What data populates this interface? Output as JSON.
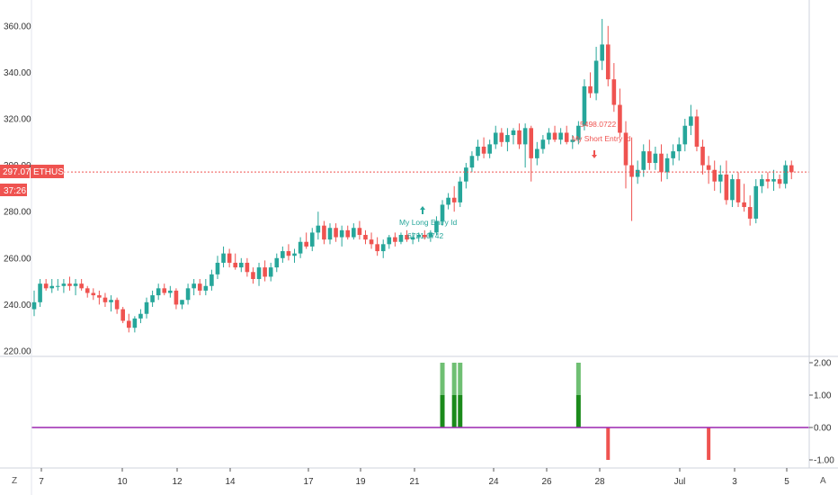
{
  "chart_data": [
    {
      "type": "candlestick",
      "symbol_tag": "ETHUSD",
      "price_tag": "297.07",
      "countdown_tag": "37:26",
      "last_price": 297.07,
      "ylim": [
        218,
        366
      ],
      "y_ticks": [
        "220.00",
        "240.00",
        "260.00",
        "280.00",
        "300.00",
        "320.00",
        "340.00",
        "360.00"
      ],
      "x_ticks": [
        "7",
        "10",
        "12",
        "14",
        "17",
        "19",
        "21",
        "24",
        "26",
        "28",
        "Jul",
        "3",
        "5"
      ],
      "candles": [
        [
          238,
          246,
          235,
          241
        ],
        [
          241,
          251,
          239,
          249
        ],
        [
          249,
          251,
          246,
          247
        ],
        [
          247,
          251,
          245,
          248
        ],
        [
          248,
          251,
          246,
          248
        ],
        [
          248,
          251,
          245,
          249
        ],
        [
          249,
          252,
          246,
          248
        ],
        [
          248,
          251,
          244,
          249
        ],
        [
          249,
          251,
          246,
          247
        ],
        [
          247,
          248,
          243,
          245
        ],
        [
          245,
          247,
          242,
          244
        ],
        [
          244,
          246,
          240,
          243
        ],
        [
          243,
          245,
          239,
          241
        ],
        [
          241,
          244,
          237,
          242
        ],
        [
          242,
          243,
          236,
          238
        ],
        [
          238,
          239,
          232,
          233
        ],
        [
          233,
          236,
          228,
          230
        ],
        [
          230,
          235,
          228,
          234
        ],
        [
          234,
          238,
          232,
          236
        ],
        [
          236,
          243,
          234,
          241
        ],
        [
          241,
          246,
          239,
          244
        ],
        [
          244,
          249,
          242,
          247
        ],
        [
          247,
          249,
          244,
          245
        ],
        [
          245,
          248,
          243,
          246
        ],
        [
          246,
          247,
          238,
          240
        ],
        [
          240,
          242,
          238,
          242
        ],
        [
          242,
          249,
          240,
          247
        ],
        [
          247,
          251,
          244,
          249
        ],
        [
          249,
          251,
          244,
          246
        ],
        [
          246,
          251,
          244,
          248
        ],
        [
          248,
          255,
          246,
          253
        ],
        [
          253,
          261,
          251,
          258
        ],
        [
          258,
          265,
          256,
          262
        ],
        [
          262,
          264,
          256,
          258
        ],
        [
          258,
          262,
          255,
          256
        ],
        [
          256,
          260,
          254,
          258
        ],
        [
          258,
          260,
          252,
          254
        ],
        [
          254,
          256,
          249,
          251
        ],
        [
          251,
          258,
          248,
          256
        ],
        [
          256,
          259,
          250,
          252
        ],
        [
          252,
          258,
          250,
          256
        ],
        [
          256,
          262,
          254,
          260
        ],
        [
          260,
          265,
          258,
          263
        ],
        [
          263,
          266,
          259,
          261
        ],
        [
          261,
          264,
          258,
          262
        ],
        [
          262,
          269,
          260,
          267
        ],
        [
          267,
          271,
          264,
          265
        ],
        [
          265,
          273,
          263,
          271
        ],
        [
          271,
          280,
          268,
          274
        ],
        [
          274,
          276,
          266,
          268
        ],
        [
          268,
          275,
          266,
          273
        ],
        [
          273,
          275,
          267,
          269
        ],
        [
          269,
          274,
          265,
          272
        ],
        [
          272,
          274,
          268,
          269
        ],
        [
          269,
          275,
          268,
          273
        ],
        [
          273,
          276,
          268,
          270
        ],
        [
          270,
          272,
          266,
          268
        ],
        [
          268,
          271,
          264,
          266
        ],
        [
          266,
          269,
          261,
          263
        ],
        [
          263,
          268,
          260,
          266
        ],
        [
          266,
          270,
          264,
          269
        ],
        [
          269,
          271,
          265,
          267
        ],
        [
          267,
          271,
          266,
          270
        ],
        [
          270,
          272,
          267,
          268
        ],
        [
          268,
          271,
          266,
          269
        ],
        [
          269,
          271,
          267,
          270
        ],
        [
          270,
          272,
          268,
          269
        ],
        [
          269,
          272,
          267,
          271
        ],
        [
          271,
          278,
          270,
          276
        ],
        [
          276,
          285,
          274,
          283
        ],
        [
          283,
          288,
          281,
          286
        ],
        [
          286,
          291,
          280,
          284
        ],
        [
          284,
          295,
          282,
          293
        ],
        [
          293,
          301,
          290,
          299
        ],
        [
          299,
          306,
          297,
          304
        ],
        [
          304,
          311,
          302,
          308
        ],
        [
          308,
          312,
          303,
          305
        ],
        [
          305,
          311,
          303,
          309
        ],
        [
          309,
          317,
          307,
          314
        ],
        [
          314,
          316,
          308,
          310
        ],
        [
          310,
          316,
          306,
          313
        ],
        [
          313,
          316,
          309,
          315
        ],
        [
          315,
          318,
          307,
          309
        ],
        [
          309,
          318,
          299,
          316
        ],
        [
          316,
          317,
          293,
          303
        ],
        [
          303,
          310,
          300,
          307
        ],
        [
          307,
          313,
          305,
          311
        ],
        [
          311,
          316,
          309,
          314
        ],
        [
          314,
          317,
          310,
          311
        ],
        [
          311,
          316,
          309,
          314
        ],
        [
          314,
          317,
          309,
          310
        ],
        [
          310,
          313,
          307,
          311
        ],
        [
          311,
          319,
          309,
          317
        ],
        [
          317,
          337,
          315,
          334
        ],
        [
          334,
          340,
          329,
          331
        ],
        [
          331,
          351,
          328,
          345
        ],
        [
          345,
          363,
          341,
          352
        ],
        [
          352,
          360,
          334,
          337
        ],
        [
          337,
          344,
          323,
          326
        ],
        [
          326,
          333,
          312,
          314
        ],
        [
          314,
          319,
          290,
          300
        ],
        [
          300,
          312,
          276,
          295
        ],
        [
          295,
          302,
          292,
          298
        ],
        [
          298,
          309,
          295,
          306
        ],
        [
          306,
          311,
          298,
          301
        ],
        [
          301,
          308,
          298,
          305
        ],
        [
          305,
          309,
          293,
          297
        ],
        [
          297,
          305,
          294,
          303
        ],
        [
          303,
          309,
          300,
          306
        ],
        [
          306,
          312,
          302,
          309
        ],
        [
          309,
          320,
          306,
          317
        ],
        [
          317,
          326,
          313,
          321
        ],
        [
          321,
          324,
          306,
          308
        ],
        [
          308,
          311,
          296,
          300
        ],
        [
          300,
          304,
          292,
          298
        ],
        [
          298,
          302,
          289,
          293
        ],
        [
          293,
          300,
          288,
          296
        ],
        [
          296,
          302,
          283,
          285
        ],
        [
          285,
          296,
          282,
          294
        ],
        [
          294,
          297,
          282,
          284
        ],
        [
          284,
          292,
          280,
          282
        ],
        [
          282,
          287,
          274,
          277
        ],
        [
          277,
          294,
          275,
          291
        ],
        [
          291,
          296,
          288,
          294
        ],
        [
          294,
          297,
          290,
          293
        ],
        [
          293,
          298,
          289,
          294
        ],
        [
          294,
          296,
          290,
          292
        ],
        [
          292,
          302,
          290,
          300
        ],
        [
          300,
          302,
          294,
          297
        ]
      ]
    },
    {
      "type": "bar",
      "y_ticks": [
        "-1.00",
        "0.00",
        "1.00",
        "2.00"
      ],
      "ylim": [
        -1.05,
        2.05
      ],
      "zero_line_color": "#9c27b0",
      "up_color": "#1b8a1b",
      "up_color_light": "#6fbf73",
      "down_color": "#ef5350",
      "values": [
        {
          "candle": 69,
          "value": 2
        },
        {
          "candle": 71,
          "value": 2
        },
        {
          "candle": 72,
          "value": 2
        },
        {
          "candle": 92,
          "value": 2
        },
        {
          "candle": 97,
          "value": -1
        },
        {
          "candle": 114,
          "value": -1
        }
      ]
    }
  ],
  "annotations": {
    "long_line1": "My Long Entry Id",
    "long_line2": "6721.0742",
    "short_line1": "5498.0722",
    "short_line2": "My Short Entry Id"
  },
  "corner": {
    "left": "Z",
    "right": "A"
  },
  "colors": {
    "up": "#26a69a",
    "down": "#ef5350",
    "last_price": "#ef5350"
  }
}
